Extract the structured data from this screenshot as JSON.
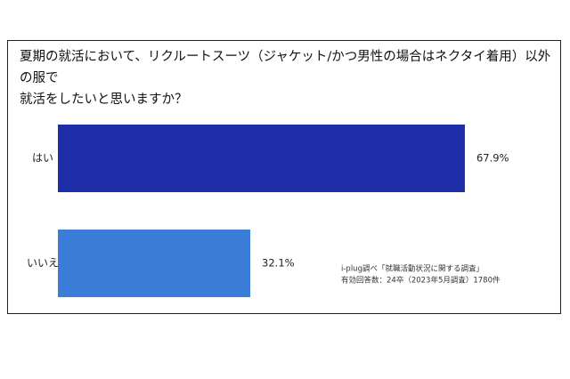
{
  "chart_data": {
    "type": "bar",
    "orientation": "horizontal",
    "title": "夏期の就活において、リクルートスーツ（ジャケット/かつ男性の場合はネクタイ着用）以外の服で\n就活をしたいと思いますか？",
    "categories": [
      "はい",
      "いいえ"
    ],
    "values": [
      67.9,
      32.1
    ],
    "value_labels": [
      "67.9%",
      "32.1%"
    ],
    "colors": [
      "#1e2ea8",
      "#3a7cd6"
    ],
    "annotations": [
      "i-plug調べ「就職活動状況に関する調査」",
      "有効回答数：24卒（2023年5月調査）1780件"
    ]
  }
}
